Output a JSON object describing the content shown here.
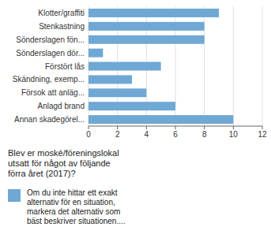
{
  "chart_data": {
    "type": "bar",
    "orientation": "horizontal",
    "categories": [
      "Klotter/graffiti",
      "Stenkastning",
      "Sönderslagen fön...",
      "Sönderslagen dör...",
      "Förstört lås",
      "Skändning, exemp...",
      "Försok att anläg...",
      "Anlagd brand",
      "Annan skadegörel..."
    ],
    "values": [
      9,
      8,
      8,
      1,
      5,
      3,
      4,
      6,
      10
    ],
    "color": "#6fa8d4",
    "xlim": [
      0,
      12
    ],
    "xticks": [
      0,
      2,
      4,
      6,
      8,
      10,
      12
    ],
    "grid": true,
    "annotations": [
      "Blev er moské/föreningslokal\nutsatt för något av följande\nförra året (2017)?",
      "Om du inte hittar ett exakt\nalternativ för en situation,\nmarkera det alternativ som\nbäst beskriver situationen...."
    ]
  }
}
